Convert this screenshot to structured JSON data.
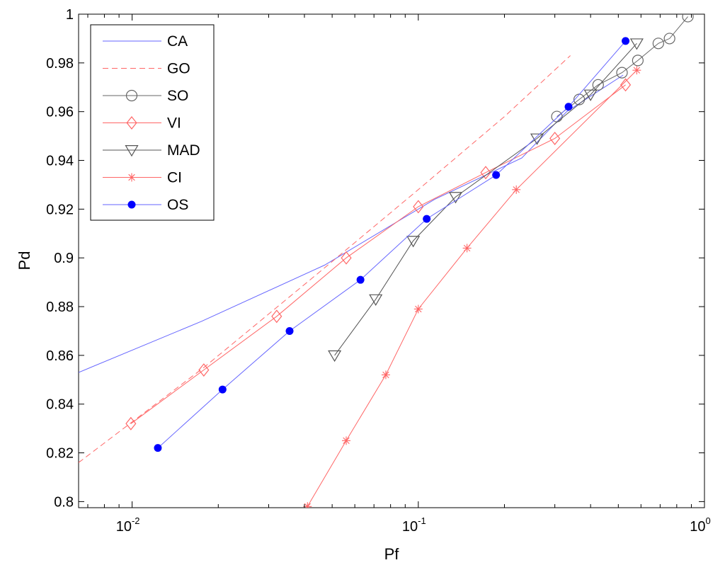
{
  "chart_data": {
    "type": "line",
    "title": "",
    "xlabel": "Pf",
    "ylabel": "Pd",
    "xscale": "log",
    "xlim": [
      0.0065,
      1.0
    ],
    "ylim": [
      0.7975,
      1.0
    ],
    "grid": false,
    "legend_position": "top-left",
    "x_ticks": [
      {
        "base": "10",
        "exp": "-2",
        "value": 0.01
      },
      {
        "base": "10",
        "exp": "-1",
        "value": 0.1
      },
      {
        "base": "10",
        "exp": "0",
        "value": 1
      }
    ],
    "y_ticks": [
      {
        "label": "0.8",
        "value": 0.8
      },
      {
        "label": "0.82",
        "value": 0.82
      },
      {
        "label": "0.84",
        "value": 0.84
      },
      {
        "label": "0.86",
        "value": 0.86
      },
      {
        "label": "0.88",
        "value": 0.88
      },
      {
        "label": "0.9",
        "value": 0.9
      },
      {
        "label": "0.92",
        "value": 0.92
      },
      {
        "label": "0.94",
        "value": 0.94
      },
      {
        "label": "0.96",
        "value": 0.96
      },
      {
        "label": "0.98",
        "value": 0.98
      },
      {
        "label": "1",
        "value": 1.0
      }
    ],
    "series": [
      {
        "name": "CA",
        "color": "#6666ff",
        "dash": "none",
        "marker": "none",
        "x": [
          0.0065,
          0.0175,
          0.047,
          0.114,
          0.23,
          0.33,
          0.52
        ],
        "y": [
          0.853,
          0.874,
          0.897,
          0.924,
          0.941,
          0.96,
          0.975
        ]
      },
      {
        "name": "GO",
        "color": "#ff6666",
        "dash": "8,5",
        "marker": "none",
        "x": [
          0.0065,
          0.0178,
          0.045,
          0.1,
          0.2,
          0.34
        ],
        "y": [
          0.816,
          0.855,
          0.894,
          0.928,
          0.958,
          0.983
        ]
      },
      {
        "name": "SO",
        "color": "#666666",
        "dash": "none",
        "marker": "circle",
        "x": [
          0.305,
          0.365,
          0.425,
          0.515,
          0.585,
          0.69,
          0.755,
          0.875
        ],
        "y": [
          0.958,
          0.965,
          0.971,
          0.976,
          0.981,
          0.988,
          0.99,
          0.999
        ]
      },
      {
        "name": "VI",
        "color": "#ff6666",
        "dash": "none",
        "marker": "diamond",
        "x": [
          0.0099,
          0.0178,
          0.032,
          0.056,
          0.1,
          0.172,
          0.3,
          0.53
        ],
        "y": [
          0.832,
          0.854,
          0.876,
          0.9,
          0.921,
          0.935,
          0.949,
          0.971
        ]
      },
      {
        "name": "MAD",
        "color": "#555555",
        "dash": "none",
        "marker": "triangle",
        "x": [
          0.051,
          0.071,
          0.096,
          0.135,
          0.26,
          0.4,
          0.58
        ],
        "y": [
          0.86,
          0.883,
          0.907,
          0.925,
          0.949,
          0.967,
          0.988
        ]
      },
      {
        "name": "CI",
        "color": "#ff6666",
        "dash": "none",
        "marker": "star",
        "x": [
          0.041,
          0.056,
          0.077,
          0.1,
          0.148,
          0.22,
          0.58
        ],
        "y": [
          0.798,
          0.825,
          0.852,
          0.879,
          0.904,
          0.928,
          0.977
        ]
      },
      {
        "name": "OS",
        "color": "#6666ff",
        "dash": "none",
        "marker": "dot",
        "x": [
          0.0123,
          0.0207,
          0.0355,
          0.0628,
          0.107,
          0.187,
          0.335,
          0.53
        ],
        "y": [
          0.822,
          0.846,
          0.87,
          0.891,
          0.916,
          0.934,
          0.962,
          0.989
        ]
      }
    ]
  },
  "colors": {
    "axis": "#000000",
    "os_marker_fill": "#0000ff"
  }
}
